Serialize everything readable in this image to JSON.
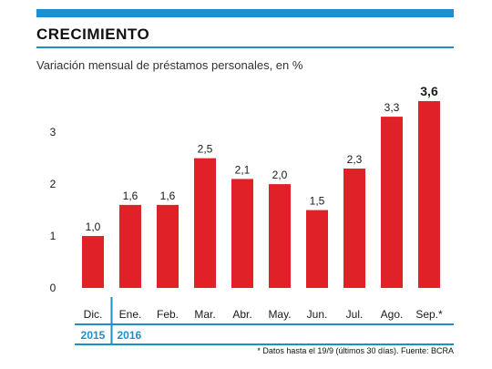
{
  "header": {
    "title": "CRECIMIENTO",
    "subtitle": "Variación mensual de préstamos personales, en %"
  },
  "colors": {
    "accent": "#1f8fcb",
    "bar": "#e02127",
    "text": "#1a1a1a"
  },
  "footnote": "* Datos hasta el 19/9 (últimos 30 días). Fuente: BCRA",
  "chart_data": {
    "type": "bar",
    "categories": [
      "Dic.",
      "Ene.",
      "Feb.",
      "Mar.",
      "Abr.",
      "May.",
      "Jun.",
      "Jul.",
      "Ago.",
      "Sep.*"
    ],
    "values": [
      1.0,
      1.6,
      1.6,
      2.5,
      2.1,
      2.0,
      1.5,
      2.3,
      3.3,
      3.6
    ],
    "data_labels": [
      "1,0",
      "1,6",
      "1,6",
      "2,5",
      "2,1",
      "2,0",
      "1,5",
      "2,3",
      "3,3",
      "3,6"
    ],
    "year_groups": [
      {
        "label": "2015",
        "categories": [
          "Dic."
        ]
      },
      {
        "label": "2016",
        "categories": [
          "Ene.",
          "Feb.",
          "Mar.",
          "Abr.",
          "May.",
          "Jun.",
          "Jul.",
          "Ago.",
          "Sep.*"
        ]
      }
    ],
    "ylim": [
      0,
      3.6
    ],
    "yticks": [
      0,
      1,
      2,
      3
    ],
    "ytick_labels": [
      "0",
      "1",
      "2",
      "3"
    ],
    "highlight_last_label": true,
    "grid": false
  }
}
